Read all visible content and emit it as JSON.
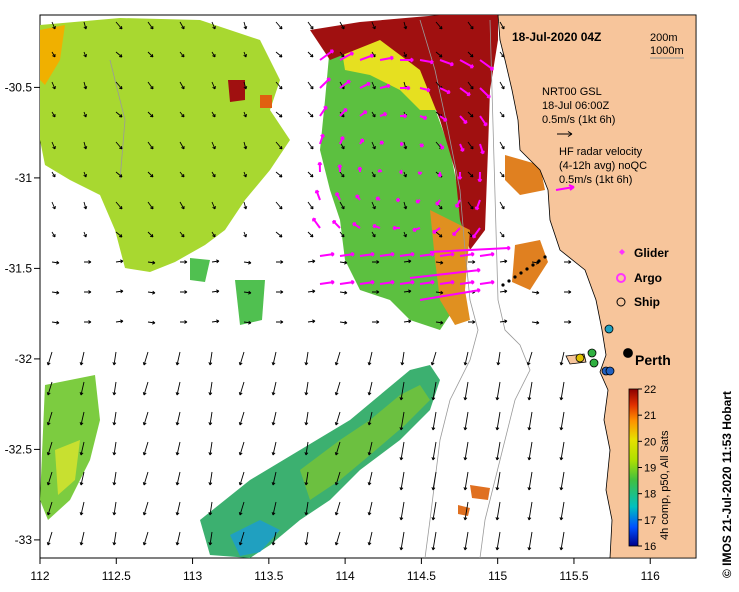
{
  "title": "18-Jul-2020 04Z",
  "depth_legend": [
    "200m",
    "1000m"
  ],
  "axes": {
    "x_ticks": [
      "112",
      "112.5",
      "113",
      "113.5",
      "114",
      "114.5",
      "115",
      "115.5",
      "116"
    ],
    "y_ticks": [
      "-30.5",
      "-31",
      "-31.5",
      "-32",
      "-32.5",
      "-33"
    ],
    "x_range": [
      112,
      116.3
    ],
    "y_range": [
      -33.1,
      -30.1
    ]
  },
  "current_legend": {
    "gsl_lines": [
      "NRT00 GSL",
      "18-Jul 06:00Z",
      "0.5m/s (1kt 6h)"
    ],
    "radar_lines": [
      "HF radar velocity",
      "(4-12h avg) noQC",
      "0.5m/s (1kt 6h)"
    ]
  },
  "markers_legend": [
    {
      "label": "Glider",
      "symbol": "glider-icon"
    },
    {
      "label": "Argo",
      "symbol": "argo-icon"
    },
    {
      "label": "Ship",
      "symbol": "ship-icon"
    }
  ],
  "place_label": "Perth",
  "colorbar": {
    "label": "4h comp, p50, All Sats",
    "ticks": [
      "22",
      "21",
      "20",
      "19",
      "18",
      "17",
      "16"
    ],
    "min": 16,
    "max": 22
  },
  "credit": "© IMOS 21-Jul-2020 11:53 Hobart",
  "colors": {
    "land": "#f7c59b",
    "glider": "#ff33ff",
    "radar_arrow": "#ff00ff"
  }
}
